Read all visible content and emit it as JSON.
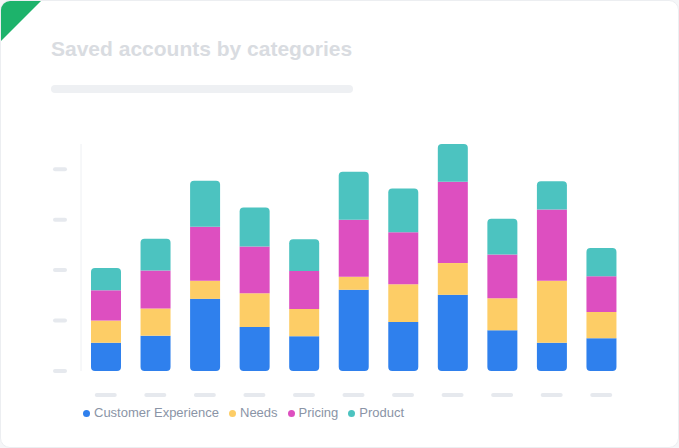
{
  "chart_data": {
    "type": "bar",
    "title": "Saved accounts by categories",
    "categories": [
      null,
      null,
      null,
      null,
      null,
      null,
      null,
      null,
      null,
      null,
      null
    ],
    "series": [
      {
        "name": "Customer Experience",
        "color": "#2f80ed",
        "values": [
          5.6,
          7,
          14.3,
          8.7,
          6.9,
          16.1,
          9.7,
          15.1,
          8.1,
          5.6,
          6.5
        ]
      },
      {
        "name": "Needs",
        "color": "#fdcd66",
        "values": [
          4.4,
          5.4,
          3.6,
          6.7,
          5.4,
          2.6,
          7.5,
          6.3,
          6.3,
          12.3,
          5.2
        ]
      },
      {
        "name": "Pricing",
        "color": "#dd4fc0",
        "values": [
          6,
          7.5,
          10.7,
          9.3,
          7.5,
          11.3,
          10.3,
          16.1,
          8.7,
          14.1,
          7.1
        ]
      },
      {
        "name": "Product",
        "color": "#4cc3c0",
        "values": [
          4.4,
          6.3,
          9.1,
          7.7,
          6.3,
          9.5,
          8.7,
          7.5,
          7.1,
          5.6,
          5.6
        ]
      }
    ],
    "ylim": [
      0,
      45
    ],
    "yticks": [
      0,
      10,
      20,
      30,
      40
    ],
    "stacked": true,
    "legend": "bottom",
    "tick_labels": false
  }
}
